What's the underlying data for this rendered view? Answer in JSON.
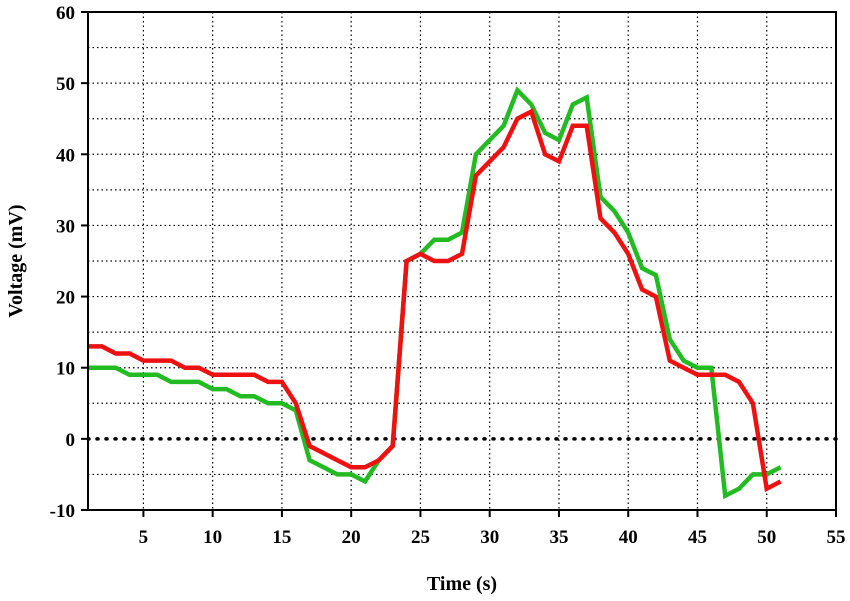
{
  "chart_data": {
    "type": "line",
    "title": "",
    "xlabel": "Time (s)",
    "ylabel": "Voltage (mV)",
    "xlim": [
      1,
      55
    ],
    "ylim": [
      -10,
      60
    ],
    "x_ticks": [
      5,
      10,
      15,
      20,
      25,
      30,
      35,
      40,
      45,
      50,
      55
    ],
    "y_ticks": [
      -10,
      0,
      10,
      20,
      30,
      40,
      50,
      60
    ],
    "grid": true,
    "grid_style": "dotted",
    "grid_x_lines": [
      5,
      10,
      15,
      20,
      25,
      30,
      35,
      40,
      45,
      50
    ],
    "grid_y_lines": [
      -5,
      5,
      15,
      25,
      35,
      45,
      55,
      10,
      20,
      30,
      40,
      50
    ],
    "zero_line": {
      "y": 0,
      "style": "dotted-heavy"
    },
    "legend": "none",
    "series": [
      {
        "color": "#22bb22",
        "x": [
          1,
          3,
          4,
          6,
          7,
          9,
          10,
          11,
          12,
          13,
          14,
          15,
          16,
          17,
          18,
          19,
          20,
          21,
          22,
          23,
          24,
          25,
          26,
          27,
          28,
          29,
          30,
          31,
          32,
          33,
          34,
          35,
          36,
          37,
          38,
          39,
          40,
          41,
          42,
          43,
          44,
          45,
          46,
          47,
          48,
          49,
          50,
          51
        ],
        "y": [
          10,
          10,
          9,
          9,
          8,
          8,
          7,
          7,
          6,
          6,
          5,
          5,
          4,
          -3,
          -4,
          -5,
          -5,
          -6,
          -3,
          -1,
          25,
          26,
          28,
          28,
          29,
          40,
          42,
          44,
          49,
          47,
          43,
          42,
          47,
          48,
          34,
          32,
          29,
          24,
          23,
          14,
          11,
          10,
          10,
          -8,
          -7,
          -5,
          -5,
          -4
        ]
      },
      {
        "color": "#ee1111",
        "x": [
          1,
          2,
          3,
          4,
          5,
          6,
          7,
          8,
          9,
          10,
          11,
          12,
          13,
          14,
          15,
          16,
          17,
          18,
          19,
          20,
          21,
          22,
          23,
          24,
          25,
          26,
          27,
          28,
          29,
          30,
          31,
          32,
          33,
          34,
          35,
          36,
          37,
          38,
          39,
          40,
          41,
          42,
          43,
          44,
          45,
          46,
          47,
          48,
          49,
          50,
          51
        ],
        "y": [
          13,
          13,
          12,
          12,
          11,
          11,
          11,
          10,
          10,
          9,
          9,
          9,
          9,
          8,
          8,
          5,
          -1,
          -2,
          -3,
          -4,
          -4,
          -3,
          -1,
          25,
          26,
          25,
          25,
          26,
          37,
          39,
          41,
          45,
          46,
          40,
          39,
          44,
          44,
          31,
          29,
          26,
          21,
          20,
          11,
          10,
          9,
          9,
          9,
          8,
          5,
          -7,
          -6
        ]
      }
    ]
  },
  "colors": {
    "axis": "#000000",
    "grid": "#000000",
    "background": "#ffffff"
  }
}
